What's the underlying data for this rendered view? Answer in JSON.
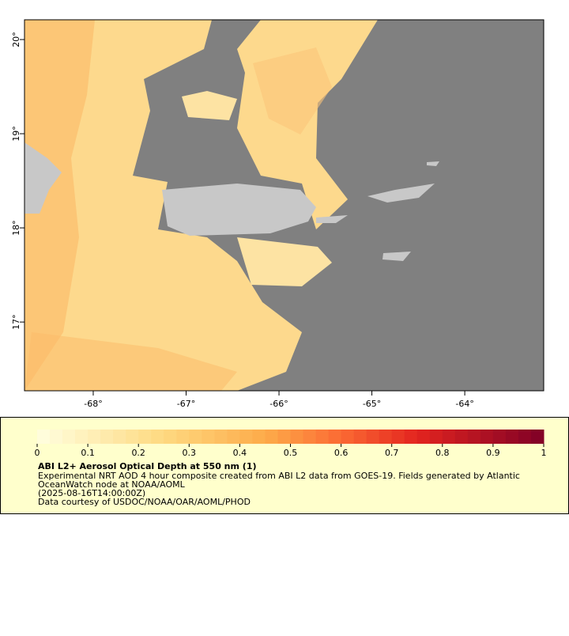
{
  "chart_data": {
    "type": "map",
    "xlim": [
      -68.74,
      -63.15
    ],
    "ylim": [
      16.27,
      20.21
    ],
    "xticks": [
      {
        "value": -68,
        "label": "-68°"
      },
      {
        "value": -67,
        "label": "-67°"
      },
      {
        "value": -66,
        "label": "-66°"
      },
      {
        "value": -65,
        "label": "-65°"
      },
      {
        "value": -64,
        "label": "-64°"
      }
    ],
    "yticks": [
      {
        "value": 17,
        "label": "17°"
      },
      {
        "value": 18,
        "label": "18°"
      },
      {
        "value": 19,
        "label": "19°"
      },
      {
        "value": 20,
        "label": "20°"
      }
    ],
    "colorbar": {
      "lim": [
        0,
        1
      ],
      "ticks": [
        0,
        0.1,
        0.2,
        0.3,
        0.4,
        0.5,
        0.6,
        0.7,
        0.8,
        0.9,
        1
      ],
      "stops": [
        {
          "value": 0,
          "color": "#ffffe0"
        },
        {
          "value": 0.25,
          "color": "#fed980"
        },
        {
          "value": 0.45,
          "color": "#fdab4a"
        },
        {
          "value": 0.6,
          "color": "#fb6a33"
        },
        {
          "value": 0.75,
          "color": "#e3241f"
        },
        {
          "value": 1,
          "color": "#7f0026"
        }
      ]
    },
    "title": "ABI L2+ Aerosol Optical Depth at 550 nm (1)",
    "notes": [
      "Experimental NRT AOD 4 hour composite created from ABI L2 data from GOES-19. Fields generated by Atlantic",
      "OceanWatch node at NOAA/AOML",
      "(2025-08-16T14:00:00Z)",
      "Data courtesy of USDOC/NOAA/OAR/AOML/PHOD"
    ]
  }
}
